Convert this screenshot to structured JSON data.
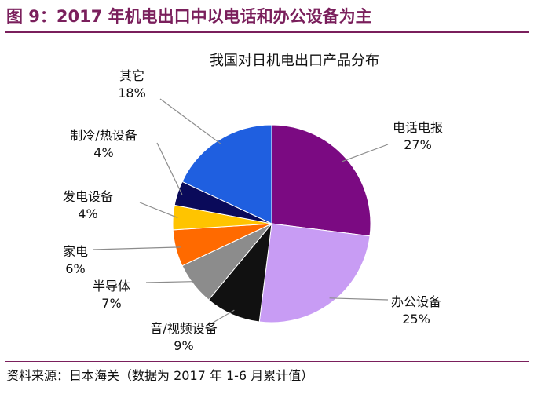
{
  "figure": {
    "title": "图 9：2017 年机电出口中以电话和办公设备为主",
    "source": "资料来源：日本海关（数据为 2017 年 1-6 月累计值）"
  },
  "chart_data": {
    "type": "pie",
    "title": "我国对日机电出口产品分布",
    "unit": "%",
    "slices": [
      {
        "label": "电话电报",
        "value": 27,
        "value_label": "27%",
        "color": "#7b0a82"
      },
      {
        "label": "办公设备",
        "value": 25,
        "value_label": "25%",
        "color": "#c89cf4"
      },
      {
        "label": "音/视频设备",
        "value": 9,
        "value_label": "9%",
        "color": "#111111"
      },
      {
        "label": "半导体",
        "value": 7,
        "value_label": "7%",
        "color": "#8c8c8c"
      },
      {
        "label": "家电",
        "value": 6,
        "value_label": "6%",
        "color": "#ff6a00"
      },
      {
        "label": "发电设备",
        "value": 4,
        "value_label": "4%",
        "color": "#ffc400"
      },
      {
        "label": "制冷/热设备",
        "value": 4,
        "value_label": "4%",
        "color": "#0a0a5a"
      },
      {
        "label": "其它",
        "value": 18,
        "value_label": "18%",
        "color": "#1f5fe0"
      }
    ],
    "start_angle": "12 o'clock",
    "direction": "clockwise"
  }
}
